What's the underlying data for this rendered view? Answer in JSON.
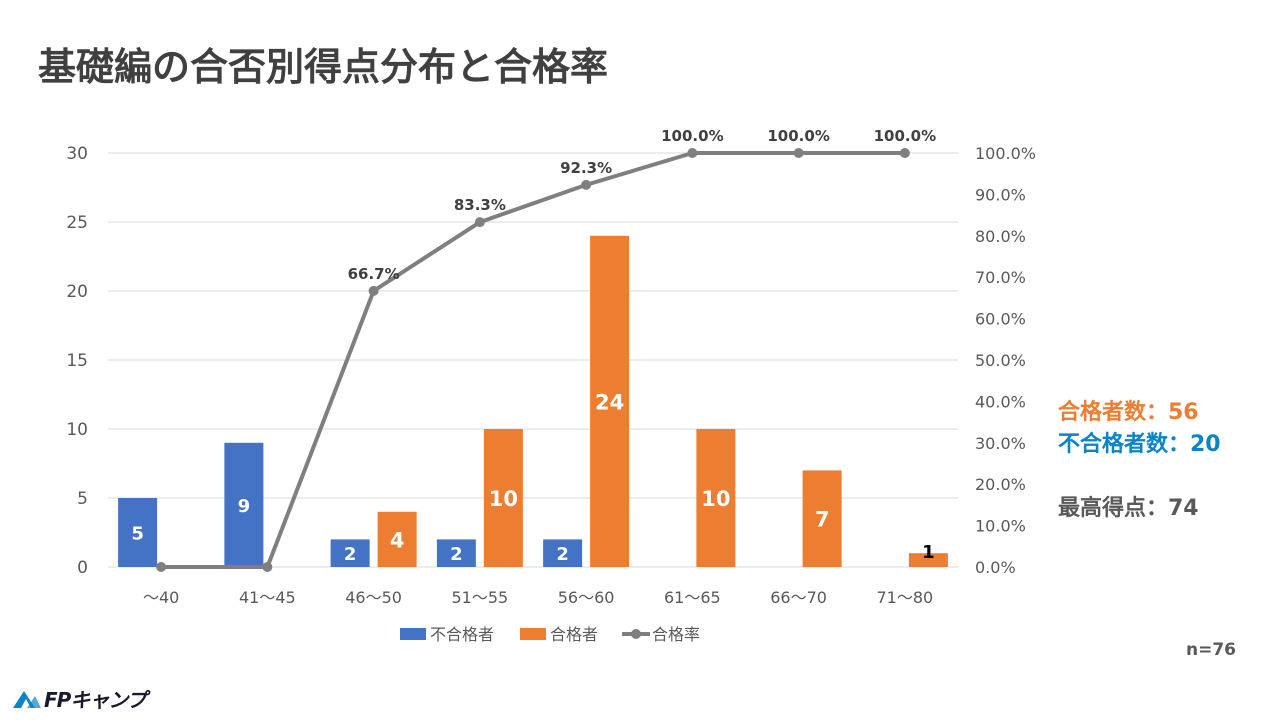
{
  "page_title": "基礎編の合否別得点分布と合格率",
  "colors": {
    "fail": "#4472C4",
    "pass": "#ED7D31",
    "rate": "#7F7F7F",
    "fail_text": "#0A84C6",
    "grid": "#D9D9D9",
    "axis_text": "#595959"
  },
  "chart_data": {
    "type": "bar",
    "categories": [
      "～40",
      "41～45",
      "46～50",
      "51～55",
      "56～60",
      "61～65",
      "66～70",
      "71～80"
    ],
    "series": [
      {
        "name": "不合格者",
        "values": [
          5,
          9,
          2,
          2,
          2,
          null,
          null,
          null
        ]
      },
      {
        "name": "合格者",
        "values": [
          null,
          null,
          4,
          10,
          24,
          10,
          7,
          1
        ]
      }
    ],
    "line_series": {
      "name": "合格率",
      "values": [
        0,
        0,
        66.7,
        83.3,
        92.3,
        100,
        100,
        100
      ],
      "labels": [
        "",
        "",
        "66.7%",
        "83.3%",
        "92.3%",
        "100.0%",
        "100.0%",
        "100.0%"
      ]
    },
    "ylim": [
      0,
      30
    ],
    "yticks": [
      "0",
      "5",
      "10",
      "15",
      "20",
      "25",
      "30"
    ],
    "y2lim": [
      0,
      100
    ],
    "y2ticks": [
      "0.0%",
      "10.0%",
      "20.0%",
      "30.0%",
      "40.0%",
      "50.0%",
      "60.0%",
      "70.0%",
      "80.0%",
      "90.0%",
      "100.0%"
    ],
    "legend": [
      "不合格者",
      "合格者",
      "合格率"
    ],
    "legend_position": "bottom-center",
    "grid": true
  },
  "summary": {
    "pass_count_label": "合格者数：56",
    "fail_count_label": "不合格者数：20",
    "max_score_label": "最高得点：74"
  },
  "sample_size": "n=76",
  "logo": {
    "text": "FPキャンプ",
    "icon": "mountain-logo-icon"
  }
}
